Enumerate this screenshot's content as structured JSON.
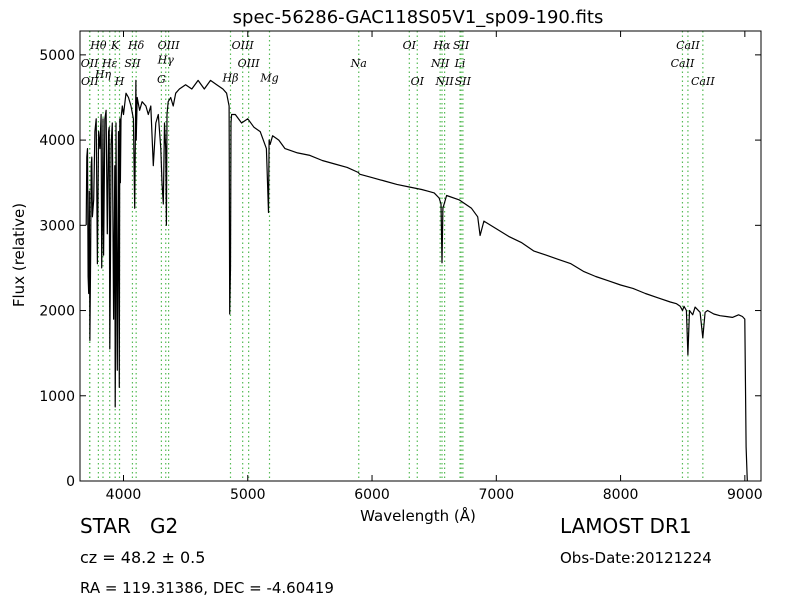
{
  "chart_data": {
    "type": "line",
    "title": "spec-56286-GAC118S05V1_sp09-190.fits",
    "xlabel": "Wavelength (Å)",
    "ylabel": "Flux (relative)",
    "xlim": [
      3650,
      9130
    ],
    "ylim": [
      0,
      5280
    ],
    "xticks": [
      4000,
      5000,
      6000,
      7000,
      8000,
      9000
    ],
    "yticks": [
      0,
      1000,
      2000,
      3000,
      4000,
      5000
    ],
    "grid": false,
    "series": [
      {
        "color": "#000000",
        "x": [
          3700,
          3705,
          3710,
          3715,
          3720,
          3725,
          3730,
          3735,
          3740,
          3745,
          3750,
          3760,
          3770,
          3780,
          3790,
          3800,
          3810,
          3820,
          3825,
          3830,
          3835,
          3840,
          3850,
          3860,
          3870,
          3880,
          3885,
          3890,
          3895,
          3900,
          3910,
          3920,
          3930,
          3933,
          3936,
          3940,
          3950,
          3960,
          3966,
          3970,
          3975,
          3980,
          3990,
          4000,
          4020,
          4040,
          4060,
          4080,
          4090,
          4100,
          4102,
          4110,
          4130,
          4150,
          4180,
          4200,
          4220,
          4240,
          4260,
          4280,
          4300,
          4310,
          4320,
          4330,
          4340,
          4345,
          4350,
          4360,
          4380,
          4400,
          4420,
          4450,
          4500,
          4550,
          4600,
          4650,
          4700,
          4750,
          4800,
          4830,
          4850,
          4855,
          4861,
          4865,
          4870,
          4900,
          4950,
          5000,
          5050,
          5100,
          5150,
          5167,
          5172,
          5180,
          5200,
          5250,
          5300,
          5400,
          5500,
          5600,
          5700,
          5800,
          5890,
          5900,
          6000,
          6100,
          6200,
          6300,
          6400,
          6450,
          6500,
          6540,
          6555,
          6563,
          6570,
          6600,
          6700,
          6800,
          6850,
          6870,
          6900,
          7000,
          7100,
          7200,
          7300,
          7400,
          7500,
          7600,
          7700,
          7800,
          7900,
          8000,
          8100,
          8200,
          8300,
          8400,
          8450,
          8480,
          8498,
          8510,
          8530,
          8542,
          8555,
          8580,
          8600,
          8640,
          8662,
          8680,
          8700,
          8750,
          8800,
          8850,
          8900,
          8950,
          8980,
          9000,
          9010,
          9020
        ],
        "y": [
          3000,
          3800,
          3900,
          2400,
          2200,
          3400,
          1650,
          2600,
          3700,
          3800,
          3100,
          3300,
          4100,
          4250,
          2550,
          4100,
          3900,
          4300,
          2500,
          3100,
          4250,
          2650,
          4250,
          4350,
          2900,
          4100,
          4150,
          1550,
          2500,
          3950,
          4200,
          1900,
          3700,
          870,
          1500,
          4200,
          1300,
          4100,
          1100,
          4250,
          3500,
          4250,
          4400,
          4300,
          4550,
          4500,
          4400,
          4250,
          3200,
          4700,
          4000,
          4500,
          4350,
          4450,
          4400,
          4300,
          4400,
          3700,
          4200,
          4300,
          3900,
          3500,
          3250,
          4200,
          3900,
          3000,
          4300,
          4450,
          4500,
          4400,
          4550,
          4600,
          4650,
          4600,
          4700,
          4600,
          4700,
          4650,
          4600,
          4550,
          4400,
          1960,
          2500,
          4200,
          4300,
          4300,
          4200,
          4250,
          4150,
          4100,
          3900,
          3150,
          4000,
          3950,
          4050,
          4000,
          3900,
          3850,
          3820,
          3760,
          3720,
          3680,
          3620,
          3600,
          3560,
          3520,
          3480,
          3450,
          3420,
          3400,
          3380,
          3320,
          3250,
          2560,
          3200,
          3350,
          3300,
          3200,
          3100,
          2880,
          3050,
          2960,
          2870,
          2800,
          2700,
          2650,
          2600,
          2550,
          2460,
          2400,
          2350,
          2300,
          2260,
          2200,
          2150,
          2100,
          2080,
          2050,
          2000,
          2050,
          2000,
          1480,
          2000,
          1950,
          2040,
          1980,
          1680,
          1980,
          2000,
          1960,
          1940,
          1930,
          1920,
          1950,
          1930,
          1900,
          400,
          0
        ]
      }
    ],
    "lines": [
      {
        "name": "OII",
        "x": 3727,
        "row": 2
      },
      {
        "name": "OII",
        "x": 3729,
        "row": 3
      },
      {
        "name": "Hθ",
        "x": 3798,
        "row": 1
      },
      {
        "name": "Hη",
        "x": 3835,
        "row": 2.6
      },
      {
        "name": "Hε",
        "x": 3889,
        "row": 2
      },
      {
        "name": "K",
        "x": 3933,
        "row": 1
      },
      {
        "name": "H",
        "x": 3968,
        "row": 3
      },
      {
        "name": "SII",
        "x": 4072,
        "row": 2
      },
      {
        "name": "Hδ",
        "x": 4102,
        "row": 1
      },
      {
        "name": "OIII",
        "x": 4363,
        "row": 1
      },
      {
        "name": "Hγ",
        "x": 4340,
        "row": 1.8
      },
      {
        "name": "G",
        "x": 4305,
        "row": 2.9
      },
      {
        "name": "OIII",
        "x": 4959,
        "row": 1
      },
      {
        "name": "OIII",
        "x": 5007,
        "row": 2
      },
      {
        "name": "Hβ",
        "x": 4861,
        "row": 2.8
      },
      {
        "name": "Mg",
        "x": 5175,
        "row": 2.8
      },
      {
        "name": "Na",
        "x": 5893,
        "row": 2
      },
      {
        "name": "OI",
        "x": 6300,
        "row": 1
      },
      {
        "name": "OI",
        "x": 6364,
        "row": 3
      },
      {
        "name": "Hα",
        "x": 6563,
        "row": 1
      },
      {
        "name": "NII",
        "x": 6548,
        "row": 2
      },
      {
        "name": "NII",
        "x": 6584,
        "row": 3
      },
      {
        "name": "SII",
        "x": 6717,
        "row": 1
      },
      {
        "name": "Li",
        "x": 6708,
        "row": 2
      },
      {
        "name": "SII",
        "x": 6731,
        "row": 3
      },
      {
        "name": "CaII",
        "x": 8498,
        "row": 2
      },
      {
        "name": "CaII",
        "x": 8542,
        "row": 1
      },
      {
        "name": "CaII",
        "x": 8662,
        "row": 3
      }
    ],
    "line_color": "#55bb55"
  },
  "info": {
    "object_class": "STAR",
    "subclass": "G2",
    "redshift": "cz = 48.2  ± 0.5",
    "coords": "RA = 119.31386, DEC = -4.60419",
    "survey": "LAMOST DR1",
    "obs_date": "Obs-Date:20121224"
  }
}
